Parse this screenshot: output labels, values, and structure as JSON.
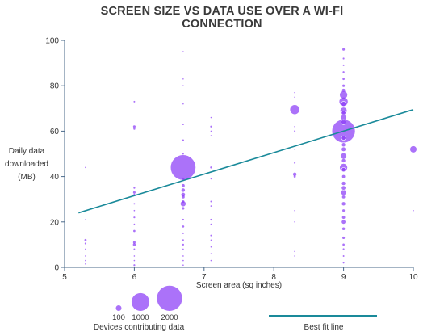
{
  "chart_data": {
    "type": "scatter",
    "title": "SCREEN SIZE VS DATA USE OVER A WI-FI CONNECTION",
    "xlabel": "Screen area (sq inches)",
    "ylabel": "Daily data downloaded (MB)",
    "xlim": [
      5,
      10
    ],
    "ylim": [
      0,
      100
    ],
    "xticks": [
      "5",
      "6",
      "7",
      "8",
      "9",
      "10"
    ],
    "yticks": [
      "0",
      "20",
      "40",
      "60",
      "80",
      "100"
    ],
    "grid": false,
    "colors": {
      "points": "#8b3cf7",
      "fit_line": "#1a8a9a",
      "axis": "#4a6a8a"
    },
    "size_legend": {
      "title": "Devices contributing data",
      "entries": [
        {
          "label": "100",
          "devices": 100
        },
        {
          "label": "1000",
          "devices": 1000
        },
        {
          "label": "2000",
          "devices": 2000
        }
      ]
    },
    "fit_line": {
      "label": "Best fit line",
      "x": [
        5.2,
        10
      ],
      "y": [
        24,
        69.5
      ]
    },
    "points": [
      {
        "x": 5.3,
        "y": 44,
        "n": 2
      },
      {
        "x": 5.3,
        "y": 21,
        "n": 5
      },
      {
        "x": 5.3,
        "y": 12,
        "n": 15
      },
      {
        "x": 5.3,
        "y": 10.5,
        "n": 10
      },
      {
        "x": 5.3,
        "y": 8,
        "n": 6
      },
      {
        "x": 5.3,
        "y": 5,
        "n": 4
      },
      {
        "x": 5.3,
        "y": 3,
        "n": 3
      },
      {
        "x": 5.3,
        "y": 1.5,
        "n": 2
      },
      {
        "x": 6.0,
        "y": 73,
        "n": 8
      },
      {
        "x": 6.0,
        "y": 62,
        "n": 20
      },
      {
        "x": 6.0,
        "y": 61,
        "n": 12
      },
      {
        "x": 6.0,
        "y": 35,
        "n": 10
      },
      {
        "x": 6.0,
        "y": 33,
        "n": 20
      },
      {
        "x": 6.0,
        "y": 32,
        "n": 12
      },
      {
        "x": 6.0,
        "y": 28,
        "n": 8
      },
      {
        "x": 6.0,
        "y": 25,
        "n": 6
      },
      {
        "x": 6.0,
        "y": 22,
        "n": 10
      },
      {
        "x": 6.0,
        "y": 19,
        "n": 5
      },
      {
        "x": 6.0,
        "y": 16,
        "n": 15
      },
      {
        "x": 6.0,
        "y": 11,
        "n": 20
      },
      {
        "x": 6.0,
        "y": 10,
        "n": 25
      },
      {
        "x": 6.0,
        "y": 8,
        "n": 8
      },
      {
        "x": 6.0,
        "y": 5,
        "n": 5
      },
      {
        "x": 6.0,
        "y": 3,
        "n": 4
      },
      {
        "x": 6.0,
        "y": 1,
        "n": 10
      },
      {
        "x": 6.7,
        "y": 95,
        "n": 3
      },
      {
        "x": 6.7,
        "y": 83,
        "n": 3
      },
      {
        "x": 6.7,
        "y": 80,
        "n": 2
      },
      {
        "x": 6.7,
        "y": 72,
        "n": 4
      },
      {
        "x": 6.7,
        "y": 63,
        "n": 8
      },
      {
        "x": 6.7,
        "y": 56,
        "n": 10
      },
      {
        "x": 6.7,
        "y": 50,
        "n": 8
      },
      {
        "x": 6.7,
        "y": 44,
        "n": 2000
      },
      {
        "x": 6.7,
        "y": 39,
        "n": 20
      },
      {
        "x": 6.7,
        "y": 36,
        "n": 30
      },
      {
        "x": 6.7,
        "y": 34,
        "n": 40
      },
      {
        "x": 6.7,
        "y": 32,
        "n": 60
      },
      {
        "x": 6.7,
        "y": 31,
        "n": 30
      },
      {
        "x": 6.7,
        "y": 29,
        "n": 20
      },
      {
        "x": 6.7,
        "y": 28,
        "n": 100
      },
      {
        "x": 6.7,
        "y": 26,
        "n": 20
      },
      {
        "x": 6.7,
        "y": 21,
        "n": 10
      },
      {
        "x": 6.7,
        "y": 18,
        "n": 15
      },
      {
        "x": 6.7,
        "y": 15,
        "n": 8
      },
      {
        "x": 6.7,
        "y": 12,
        "n": 8
      },
      {
        "x": 6.7,
        "y": 10,
        "n": 10
      },
      {
        "x": 6.7,
        "y": 8,
        "n": 6
      },
      {
        "x": 6.7,
        "y": 5,
        "n": 6
      },
      {
        "x": 6.7,
        "y": 3,
        "n": 6
      },
      {
        "x": 6.7,
        "y": 1,
        "n": 6
      },
      {
        "x": 7.1,
        "y": 66,
        "n": 3
      },
      {
        "x": 7.1,
        "y": 62,
        "n": 10
      },
      {
        "x": 7.1,
        "y": 60,
        "n": 5
      },
      {
        "x": 7.1,
        "y": 58,
        "n": 4
      },
      {
        "x": 7.1,
        "y": 44,
        "n": 12
      },
      {
        "x": 7.1,
        "y": 39,
        "n": 5
      },
      {
        "x": 7.1,
        "y": 29,
        "n": 8
      },
      {
        "x": 7.1,
        "y": 27,
        "n": 6
      },
      {
        "x": 7.1,
        "y": 21,
        "n": 10
      },
      {
        "x": 7.1,
        "y": 19,
        "n": 6
      },
      {
        "x": 7.1,
        "y": 14,
        "n": 8
      },
      {
        "x": 7.1,
        "y": 12,
        "n": 5
      },
      {
        "x": 7.1,
        "y": 9,
        "n": 4
      },
      {
        "x": 7.1,
        "y": 6,
        "n": 3
      },
      {
        "x": 7.1,
        "y": 3,
        "n": 3
      },
      {
        "x": 8.3,
        "y": 77,
        "n": 3
      },
      {
        "x": 8.3,
        "y": 75,
        "n": 2
      },
      {
        "x": 8.3,
        "y": 69.5,
        "n": 300
      },
      {
        "x": 8.3,
        "y": 62,
        "n": 5
      },
      {
        "x": 8.3,
        "y": 60,
        "n": 8
      },
      {
        "x": 8.3,
        "y": 52,
        "n": 5
      },
      {
        "x": 8.3,
        "y": 46,
        "n": 8
      },
      {
        "x": 8.3,
        "y": 41,
        "n": 40
      },
      {
        "x": 8.3,
        "y": 40,
        "n": 15
      },
      {
        "x": 8.3,
        "y": 25,
        "n": 4
      },
      {
        "x": 8.3,
        "y": 20,
        "n": 3
      },
      {
        "x": 8.3,
        "y": 7,
        "n": 3
      },
      {
        "x": 8.3,
        "y": 5,
        "n": 2
      },
      {
        "x": 9.0,
        "y": 96,
        "n": 20
      },
      {
        "x": 9.0,
        "y": 92,
        "n": 10
      },
      {
        "x": 9.0,
        "y": 89,
        "n": 8
      },
      {
        "x": 9.0,
        "y": 86,
        "n": 12
      },
      {
        "x": 9.0,
        "y": 83,
        "n": 15
      },
      {
        "x": 9.0,
        "y": 80,
        "n": 20
      },
      {
        "x": 9.0,
        "y": 78,
        "n": 30
      },
      {
        "x": 9.0,
        "y": 76,
        "n": 200
      },
      {
        "x": 9.0,
        "y": 73,
        "n": 250
      },
      {
        "x": 9.0,
        "y": 72,
        "n": 80
      },
      {
        "x": 9.0,
        "y": 69,
        "n": 150
      },
      {
        "x": 9.0,
        "y": 68,
        "n": 60
      },
      {
        "x": 9.0,
        "y": 66,
        "n": 100
      },
      {
        "x": 9.0,
        "y": 64,
        "n": 80
      },
      {
        "x": 9.0,
        "y": 60,
        "n": 1700
      },
      {
        "x": 9.0,
        "y": 57,
        "n": 60
      },
      {
        "x": 9.0,
        "y": 54,
        "n": 40
      },
      {
        "x": 9.0,
        "y": 52,
        "n": 50
      },
      {
        "x": 9.0,
        "y": 49,
        "n": 120
      },
      {
        "x": 9.0,
        "y": 47,
        "n": 40
      },
      {
        "x": 9.0,
        "y": 44,
        "n": 200
      },
      {
        "x": 9.0,
        "y": 43,
        "n": 60
      },
      {
        "x": 9.0,
        "y": 40,
        "n": 30
      },
      {
        "x": 9.0,
        "y": 37,
        "n": 40
      },
      {
        "x": 9.0,
        "y": 35,
        "n": 60
      },
      {
        "x": 9.0,
        "y": 33,
        "n": 100
      },
      {
        "x": 9.0,
        "y": 31,
        "n": 30
      },
      {
        "x": 9.0,
        "y": 28,
        "n": 40
      },
      {
        "x": 9.0,
        "y": 25,
        "n": 20
      },
      {
        "x": 9.0,
        "y": 22,
        "n": 30
      },
      {
        "x": 9.0,
        "y": 20,
        "n": 60
      },
      {
        "x": 9.0,
        "y": 17,
        "n": 25
      },
      {
        "x": 9.0,
        "y": 13,
        "n": 20
      },
      {
        "x": 9.0,
        "y": 10,
        "n": 15
      },
      {
        "x": 9.0,
        "y": 8,
        "n": 10
      },
      {
        "x": 9.0,
        "y": 5,
        "n": 8
      },
      {
        "x": 9.0,
        "y": 2,
        "n": 8
      },
      {
        "x": 10.0,
        "y": 52,
        "n": 150
      },
      {
        "x": 10.0,
        "y": 25,
        "n": 2
      }
    ]
  }
}
